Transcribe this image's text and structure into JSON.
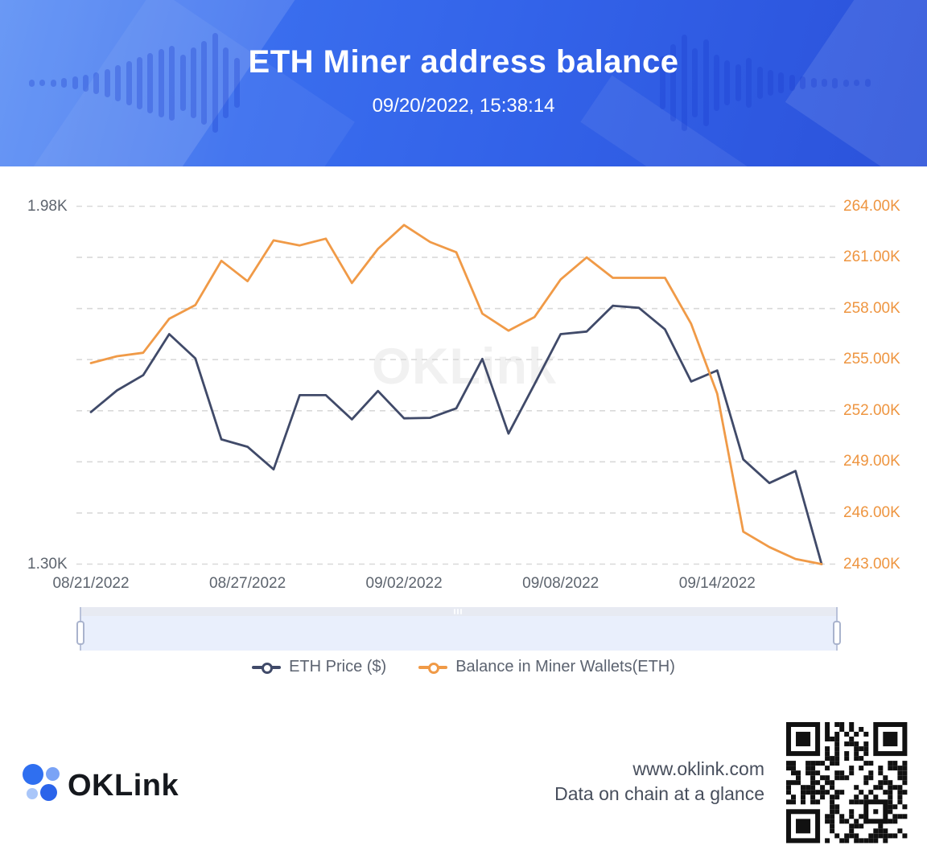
{
  "header": {
    "title": "ETH Miner address balance",
    "subtitle": "09/20/2022, 15:38:14"
  },
  "chart_data": {
    "type": "line",
    "x": [
      "08/21/2022",
      "08/22/2022",
      "08/23/2022",
      "08/24/2022",
      "08/25/2022",
      "08/26/2022",
      "08/27/2022",
      "08/28/2022",
      "08/29/2022",
      "08/30/2022",
      "08/31/2022",
      "09/01/2022",
      "09/02/2022",
      "09/03/2022",
      "09/04/2022",
      "09/05/2022",
      "09/06/2022",
      "09/07/2022",
      "09/08/2022",
      "09/09/2022",
      "09/10/2022",
      "09/11/2022",
      "09/12/2022",
      "09/13/2022",
      "09/14/2022",
      "09/15/2022",
      "09/16/2022",
      "09/17/2022",
      "09/18/2022"
    ],
    "x_tick_labels": [
      "08/21/2022",
      "08/27/2022",
      "09/02/2022",
      "09/08/2022",
      "09/14/2022"
    ],
    "x_tick_indices": [
      0,
      6,
      12,
      18,
      24
    ],
    "series": [
      {
        "name": "ETH Price ($)",
        "axis": "left",
        "color": "#404a69",
        "values": [
          1589,
          1630,
          1659,
          1737,
          1691,
          1537,
          1523,
          1480,
          1621,
          1621,
          1575,
          1629,
          1577,
          1578,
          1596,
          1690,
          1548,
          1642,
          1737,
          1742,
          1791,
          1787,
          1746,
          1647,
          1668,
          1499,
          1454,
          1477,
          1300
        ]
      },
      {
        "name": "Balance in Miner Wallets(ETH)",
        "axis": "right",
        "color": "#f09a47",
        "values": [
          254800,
          255200,
          255400,
          257400,
          258200,
          260800,
          259600,
          262000,
          261700,
          262100,
          259500,
          261500,
          262900,
          261900,
          261300,
          257700,
          256700,
          257500,
          259700,
          261000,
          259800,
          259800,
          259800,
          257100,
          253000,
          244900,
          244000,
          243300,
          243000
        ]
      }
    ],
    "left_axis": {
      "min": 1300,
      "max": 1980,
      "tick_labels": [
        "1.98K",
        "1.30K"
      ]
    },
    "right_axis": {
      "min": 243000,
      "max": 264000,
      "tick_labels": [
        "264.00K",
        "261.00K",
        "258.00K",
        "255.00K",
        "252.00K",
        "249.00K",
        "246.00K",
        "243.00K"
      ]
    },
    "grid": "horizontal dashed",
    "legend_position": "bottom",
    "title": "ETH Miner address balance"
  },
  "legend": {
    "items": [
      {
        "label": "ETH Price ($)",
        "color": "#404a69"
      },
      {
        "label": "Balance in Miner Wallets(ETH)",
        "color": "#f09a47"
      }
    ]
  },
  "watermark": "OKLink",
  "footer": {
    "logo_text": "OKLink",
    "website": "www.oklink.com",
    "tagline": "Data on chain at a glance"
  },
  "colors": {
    "header_blue": "#3363e9",
    "price_line": "#404a69",
    "balance_line": "#f09a47",
    "right_axis_text": "#ee9540",
    "left_axis_text": "#5d646e",
    "gridline": "#d9d9d9",
    "brush_track": "#e9effc",
    "brush_area_fill": "#c5d3f3",
    "brush_area_stroke": "#93a9e4"
  }
}
